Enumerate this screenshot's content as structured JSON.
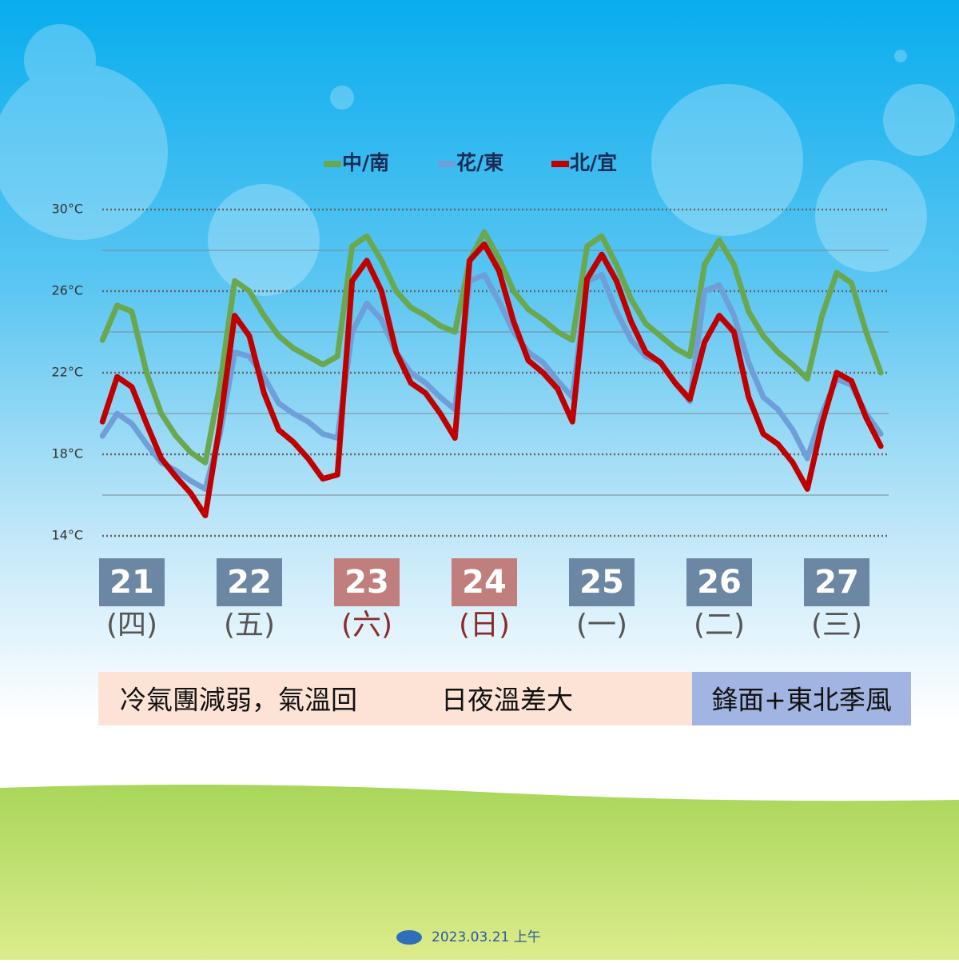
{
  "chart_data": {
    "type": "line",
    "legend": [
      "中/南",
      "花/東",
      "北/宜"
    ],
    "x": [
      6,
      9,
      12,
      15,
      18,
      21,
      24,
      27,
      30,
      33,
      36,
      39,
      42,
      45,
      48,
      51,
      54,
      57,
      60,
      63,
      66,
      69,
      72,
      75,
      78,
      81,
      84,
      87,
      90,
      93,
      96,
      99,
      102,
      105,
      108,
      111,
      114,
      117,
      120,
      123,
      126,
      129,
      132,
      135,
      138,
      141,
      144,
      147,
      150,
      153,
      156,
      159,
      162,
      165
    ],
    "xlim": [
      0,
      168
    ],
    "series": [
      {
        "name": "中/南",
        "color": "#6aa84f",
        "values": [
          23.6,
          25.3,
          25.0,
          22.0,
          20.0,
          18.9,
          18.1,
          17.6,
          21.4,
          26.5,
          26.0,
          24.8,
          23.8,
          23.2,
          22.8,
          22.4,
          22.8,
          28.2,
          28.7,
          27.5,
          26.0,
          25.2,
          24.8,
          24.3,
          24.0,
          27.5,
          28.9,
          27.6,
          26.0,
          25.1,
          24.6,
          24.0,
          23.6,
          28.2,
          28.7,
          27.3,
          25.6,
          24.4,
          23.8,
          23.2,
          22.8,
          27.3,
          28.5,
          27.3,
          25.0,
          23.8,
          23.0,
          22.4,
          21.7,
          24.8,
          26.9,
          26.4,
          24.0,
          22.0
        ]
      },
      {
        "name": "花/東",
        "color": "#6f9fd8",
        "values": [
          18.9,
          20.0,
          19.5,
          18.5,
          17.6,
          17.2,
          16.7,
          16.3,
          19.0,
          23.0,
          22.8,
          21.8,
          20.5,
          20.0,
          19.6,
          19.0,
          18.8,
          24.0,
          25.4,
          24.6,
          23.0,
          22.0,
          21.5,
          20.8,
          20.2,
          26.5,
          26.8,
          25.5,
          24.0,
          23.0,
          22.5,
          21.6,
          20.8,
          26.5,
          26.8,
          25.0,
          23.6,
          22.8,
          22.5,
          21.5,
          20.6,
          26.0,
          26.3,
          24.8,
          22.5,
          20.8,
          20.2,
          19.2,
          17.8,
          20.0,
          21.7,
          21.4,
          20.0,
          19.0
        ]
      },
      {
        "name": "北/宜",
        "color": "#c00000",
        "values": [
          19.6,
          21.8,
          21.3,
          19.5,
          17.8,
          16.9,
          16.1,
          15.0,
          19.5,
          24.8,
          23.8,
          21.0,
          19.2,
          18.6,
          17.8,
          16.8,
          17.0,
          26.5,
          27.5,
          26.0,
          23.0,
          21.5,
          21.0,
          20.0,
          18.8,
          27.5,
          28.3,
          27.0,
          24.5,
          22.6,
          22.0,
          21.2,
          19.6,
          26.6,
          27.8,
          26.5,
          24.5,
          23.0,
          22.5,
          21.5,
          20.7,
          23.5,
          24.8,
          24.0,
          20.8,
          19.0,
          18.5,
          17.6,
          16.3,
          19.5,
          22.0,
          21.6,
          19.8,
          18.4
        ]
      }
    ],
    "ylim": [
      14,
      30
    ],
    "yticks": [
      {
        "value": 30,
        "label": "30°C"
      },
      {
        "value": 26,
        "label": "26°C"
      },
      {
        "value": 22,
        "label": "22°C"
      },
      {
        "value": 18,
        "label": "18°C"
      },
      {
        "value": 14,
        "label": "14°C"
      }
    ],
    "minor_yticks": [
      28,
      24,
      20,
      16
    ],
    "days": [
      {
        "date": "21",
        "weekday": "(四)",
        "color": "#6b87a3"
      },
      {
        "date": "22",
        "weekday": "(五)",
        "color": "#6b87a3"
      },
      {
        "date": "23",
        "weekday": "(六)",
        "color": "#c07f7c"
      },
      {
        "date": "24",
        "weekday": "(日)",
        "color": "#c07f7c"
      },
      {
        "date": "25",
        "weekday": "(一)",
        "color": "#6b87a3"
      },
      {
        "date": "26",
        "weekday": "(二)",
        "color": "#6b87a3"
      },
      {
        "date": "27",
        "weekday": "(三)",
        "color": "#6b87a3"
      }
    ],
    "banner": {
      "left": [
        "冷氣團減弱，氣溫回",
        "日夜溫差大"
      ],
      "right": "鋒面+東北季風"
    },
    "footer": "2023.03.21 上午"
  }
}
